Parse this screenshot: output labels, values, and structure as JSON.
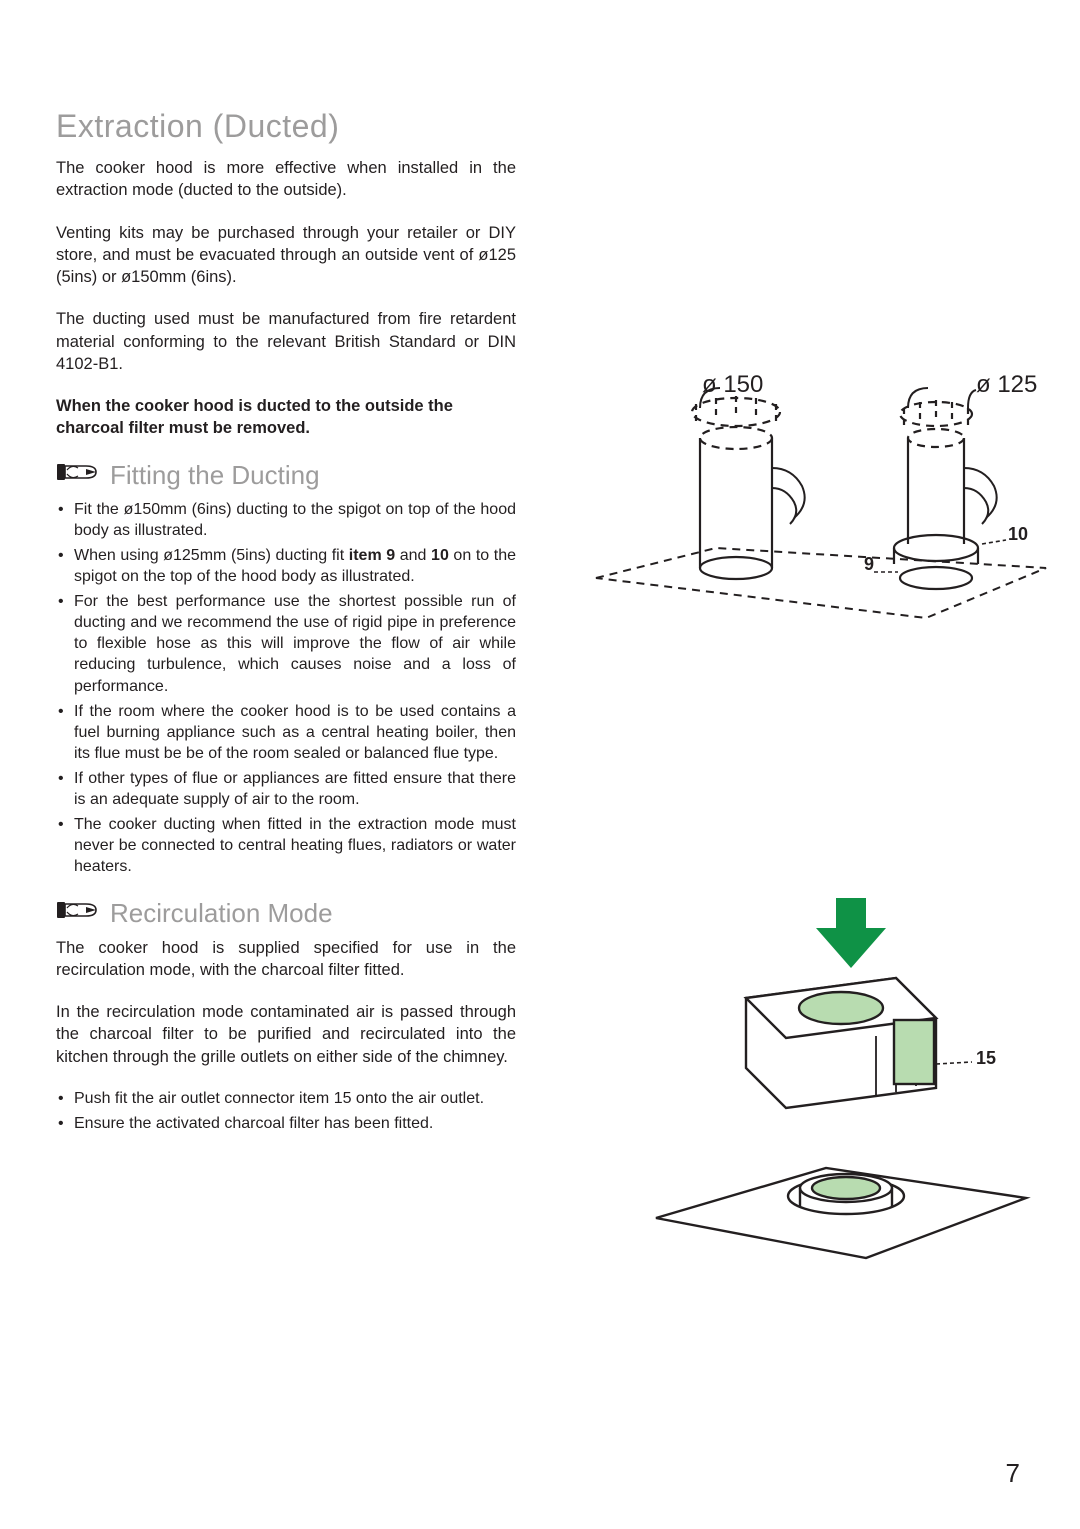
{
  "page_number": "7",
  "section1": {
    "title": "Extraction (Ducted)",
    "p1": "The cooker hood is more effective when installed in the extraction mode (ducted to the outside).",
    "p2": "Venting kits may be purchased through your retailer or DIY store, and must be evacuated through an outside vent of ø125 (5ins) or ø150mm (6ins).",
    "p3": "The ducting used must be manufactured from fire retardent material conforming to the relevant British Standard or DIN 4102-B1.",
    "p4": "When the cooker hood is ducted to the outside the charcoal filter must be removed."
  },
  "section2": {
    "title": "Fitting the Ducting",
    "bullets": [
      "Fit the ø150mm (6ins) ducting to the spigot on top of the hood body as illustrated.",
      "When using ø125mm (5ins) ducting fit <span class='b'>item 9</span> and <span class='b'>10</span> on to the spigot on the top of the hood body as illustrated.",
      "For the best performance use the shortest possible run of ducting and we recommend the use of rigid pipe in preference to flexible hose as this will improve the flow of air while reducing turbulence, which causes noise and a loss of performance.",
      "If the room where the cooker hood is to be used contains a fuel burning appliance such as a central heating boiler, then its flue must be be of the room sealed or balanced flue type.",
      "If other types of flue or appliances are fitted ensure that there is an adequate supply of air to the room.",
      "The cooker ducting when fitted in the extraction mode must never be connected to central heating flues, radiators or water heaters."
    ]
  },
  "section3": {
    "title": "Recirculation Mode",
    "p1": "The cooker hood is supplied specified for use in the recirculation mode, with the charcoal filter fitted.",
    "p2": "In the recirculation mode contaminated air is passed through the charcoal filter to be purified and recirculated into the kitchen through the grille outlets on either side of the chimney.",
    "bullets": [
      "Push fit the air outlet connector item 15 onto the air outlet.",
      "Ensure the activated charcoal filter has been fitted."
    ]
  },
  "diagram1": {
    "label_150": "ø 150",
    "label_125": "ø 125",
    "label_9": "9",
    "label_10": "10"
  },
  "diagram2": {
    "label_15": "15"
  },
  "colors": {
    "heading": "#9d9c9c",
    "body": "#231f20",
    "accent_green": "#0f9246",
    "accent_fill": "#b8dcb0"
  }
}
